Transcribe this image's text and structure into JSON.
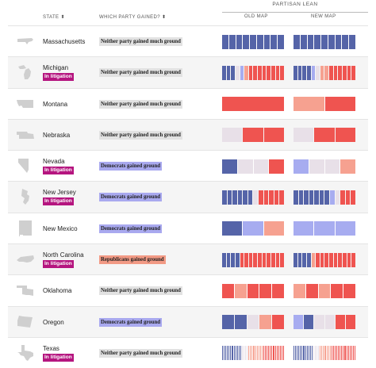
{
  "header": {
    "partisan_lean": "PARTISAN LEAN",
    "col_state": "STATE",
    "col_state_sort": "⬍",
    "col_gained": "WHICH PARTY GAINED?",
    "col_gained_sort": "⬍",
    "col_old_map": "OLD MAP",
    "col_new_map": "NEW MAP"
  },
  "colors": {
    "strong_d": "#5564a8",
    "lean_d": "#a7acf0",
    "even": "#e8e0e8",
    "lean_r": "#f6a190",
    "strong_r": "#ef5450",
    "litigation": "#b5157f"
  },
  "states": [
    {
      "name": "Massachusetts",
      "litigation": "",
      "gained": "Neither party gained much ground",
      "gained_type": "neither",
      "icon": "massachusetts-icon",
      "old": [
        "D",
        "D",
        "D",
        "D",
        "D",
        "D",
        "D",
        "D",
        "D"
      ],
      "new": [
        "D",
        "D",
        "D",
        "D",
        "D",
        "D",
        "D",
        "D",
        "D"
      ]
    },
    {
      "name": "Michigan",
      "litigation": "In litigation",
      "gained": "Neither party gained much ground",
      "gained_type": "neither",
      "icon": "michigan-icon",
      "old": [
        "D",
        "D",
        "D",
        "E",
        "d",
        "r",
        "R",
        "R",
        "R",
        "R",
        "R",
        "R",
        "R",
        "R"
      ],
      "new": [
        "D",
        "D",
        "D",
        "D",
        "d",
        "E",
        "r",
        "r",
        "R",
        "R",
        "R",
        "R",
        "R",
        "R"
      ]
    },
    {
      "name": "Montana",
      "litigation": "",
      "gained": "Neither party gained much ground",
      "gained_type": "neither",
      "icon": "montana-icon",
      "old": [
        "R"
      ],
      "new": [
        "r",
        "R"
      ],
      "new_weights": [
        1,
        1
      ]
    },
    {
      "name": "Nebraska",
      "litigation": "",
      "gained": "Neither party gained much ground",
      "gained_type": "neither",
      "icon": "nebraska-icon",
      "old": [
        "E",
        "R",
        "R"
      ],
      "new": [
        "E",
        "R",
        "R"
      ]
    },
    {
      "name": "Nevada",
      "litigation": "In litigation",
      "gained": "Democrats gained ground",
      "gained_type": "dem",
      "icon": "nevada-icon",
      "old": [
        "D",
        "E",
        "E",
        "R"
      ],
      "new": [
        "d",
        "E",
        "E",
        "r"
      ]
    },
    {
      "name": "New Jersey",
      "litigation": "In litigation",
      "gained": "Democrats gained ground",
      "gained_type": "dem",
      "icon": "new-jersey-icon",
      "old": [
        "D",
        "D",
        "D",
        "D",
        "D",
        "D",
        "E",
        "R",
        "R",
        "R",
        "R",
        "R"
      ],
      "new": [
        "D",
        "D",
        "D",
        "D",
        "D",
        "D",
        "D",
        "d",
        "E",
        "R",
        "R",
        "R"
      ]
    },
    {
      "name": "New Mexico",
      "litigation": "",
      "gained": "Democrats gained ground",
      "gained_type": "dem",
      "icon": "new-mexico-icon",
      "old": [
        "D",
        "d",
        "r"
      ],
      "new": [
        "d",
        "d",
        "d"
      ]
    },
    {
      "name": "North Carolina",
      "litigation": "In litigation",
      "gained": "Republicans gained ground",
      "gained_type": "rep",
      "icon": "north-carolina-icon",
      "old": [
        "D",
        "D",
        "D",
        "D",
        "R",
        "R",
        "R",
        "R",
        "R",
        "R",
        "R",
        "R",
        "R",
        "R"
      ],
      "new": [
        "D",
        "D",
        "D",
        "D",
        "r",
        "R",
        "R",
        "R",
        "R",
        "R",
        "R",
        "R",
        "R",
        "R"
      ]
    },
    {
      "name": "Oklahoma",
      "litigation": "",
      "gained": "Neither party gained much ground",
      "gained_type": "neither",
      "icon": "oklahoma-icon",
      "old": [
        "R",
        "r",
        "R",
        "R",
        "R"
      ],
      "new": [
        "r",
        "R",
        "r",
        "R",
        "R"
      ]
    },
    {
      "name": "Oregon",
      "litigation": "",
      "gained": "Democrats gained ground",
      "gained_type": "dem",
      "icon": "oregon-icon",
      "old": [
        "D",
        "D",
        "E",
        "r",
        "R"
      ],
      "new": [
        "d",
        "D",
        "E",
        "E",
        "R",
        "R"
      ]
    },
    {
      "name": "Texas",
      "litigation": "In litigation",
      "gained": "Neither party gained much ground",
      "gained_type": "neither",
      "icon": "texas-icon",
      "old": [
        "D",
        "D",
        "D",
        "D",
        "D",
        "D",
        "D",
        "D",
        "D",
        "D",
        "D",
        "D",
        "E",
        "E",
        "E",
        "E",
        "r",
        "r",
        "r",
        "r",
        "r",
        "r",
        "r",
        "r",
        "r",
        "R",
        "R",
        "R",
        "R",
        "R",
        "R",
        "R",
        "R",
        "R",
        "R",
        "R",
        "R",
        "R"
      ],
      "new": [
        "D",
        "D",
        "D",
        "D",
        "D",
        "D",
        "D",
        "D",
        "D",
        "D",
        "D",
        "D",
        "E",
        "E",
        "E",
        "E",
        "r",
        "r",
        "r",
        "r",
        "r",
        "r",
        "r",
        "R",
        "R",
        "R",
        "R",
        "R",
        "R",
        "R",
        "R",
        "R",
        "R",
        "R",
        "R",
        "R",
        "R",
        "R"
      ]
    }
  ]
}
